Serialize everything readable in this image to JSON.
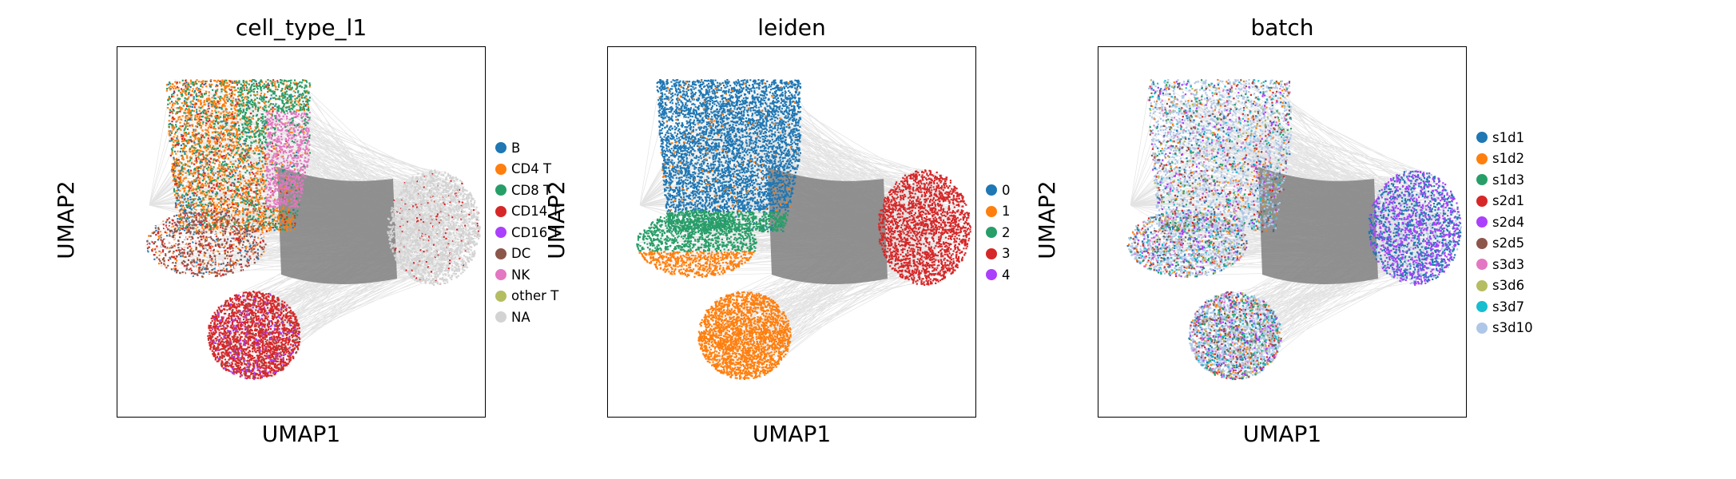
{
  "figure": {
    "panels": [
      {
        "id": "cell_type",
        "title": "cell_type_l1",
        "xlabel": "UMAP1",
        "ylabel": "UMAP2",
        "legend": [
          {
            "label": "B",
            "color": "#1f77b4"
          },
          {
            "label": "CD4 T",
            "color": "#ff7f0e"
          },
          {
            "label": "CD8 T",
            "color": "#279e68"
          },
          {
            "label": "CD14 T",
            "color": "#d62728"
          },
          {
            "label": "CD16 T",
            "color": "#aa40fc"
          },
          {
            "label": "DC",
            "color": "#8c564b"
          },
          {
            "label": "NK",
            "color": "#e377c2"
          },
          {
            "label": "other T",
            "color": "#b5bd61"
          },
          {
            "label": "NA",
            "color": "#d3d3d3"
          }
        ]
      },
      {
        "id": "leiden",
        "title": "leiden",
        "xlabel": "UMAP1",
        "ylabel": "UMAP2",
        "legend": [
          {
            "label": "0",
            "color": "#1f77b4"
          },
          {
            "label": "1",
            "color": "#ff7f0e"
          },
          {
            "label": "2",
            "color": "#279e68"
          },
          {
            "label": "3",
            "color": "#d62728"
          },
          {
            "label": "4",
            "color": "#aa40fc"
          }
        ]
      },
      {
        "id": "batch",
        "title": "batch",
        "xlabel": "UMAP1",
        "ylabel": "UMAP2",
        "legend": [
          {
            "label": "s1d1",
            "color": "#1f77b4"
          },
          {
            "label": "s1d2",
            "color": "#ff7f0e"
          },
          {
            "label": "s1d3",
            "color": "#279e68"
          },
          {
            "label": "s2d1",
            "color": "#d62728"
          },
          {
            "label": "s2d4",
            "color": "#aa40fc"
          },
          {
            "label": "s2d5",
            "color": "#8c564b"
          },
          {
            "label": "s3d3",
            "color": "#e377c2"
          },
          {
            "label": "s3d6",
            "color": "#b5bd61"
          },
          {
            "label": "s3d7",
            "color": "#17becf"
          },
          {
            "label": "s3d10",
            "color": "#aec7e8"
          }
        ]
      }
    ],
    "edge_color": "#808080"
  },
  "chart_data": [
    {
      "type": "scatter",
      "title": "cell_type_l1",
      "xlabel": "UMAP1",
      "ylabel": "UMAP2",
      "axis_ticks": "none",
      "legend_position": "right",
      "series": [
        {
          "name": "B",
          "color": "#1f77b4"
        },
        {
          "name": "CD4 T",
          "color": "#ff7f0e"
        },
        {
          "name": "CD8 T",
          "color": "#279e68"
        },
        {
          "name": "CD14 T",
          "color": "#d62728"
        },
        {
          "name": "CD16 T",
          "color": "#aa40fc"
        },
        {
          "name": "DC",
          "color": "#8c564b"
        },
        {
          "name": "NK",
          "color": "#e377c2"
        },
        {
          "name": "other T",
          "color": "#b5bd61"
        },
        {
          "name": "NA",
          "color": "#d3d3d3"
        }
      ]
    },
    {
      "type": "scatter",
      "title": "leiden",
      "xlabel": "UMAP1",
      "ylabel": "UMAP2",
      "axis_ticks": "none",
      "legend_position": "right",
      "series": [
        {
          "name": "0",
          "color": "#1f77b4"
        },
        {
          "name": "1",
          "color": "#ff7f0e"
        },
        {
          "name": "2",
          "color": "#279e68"
        },
        {
          "name": "3",
          "color": "#d62728"
        },
        {
          "name": "4",
          "color": "#aa40fc"
        }
      ]
    },
    {
      "type": "scatter",
      "title": "batch",
      "xlabel": "UMAP1",
      "ylabel": "UMAP2",
      "axis_ticks": "none",
      "legend_position": "right",
      "series": [
        {
          "name": "s1d1",
          "color": "#1f77b4"
        },
        {
          "name": "s1d2",
          "color": "#ff7f0e"
        },
        {
          "name": "s1d3",
          "color": "#279e68"
        },
        {
          "name": "s2d1",
          "color": "#d62728"
        },
        {
          "name": "s2d4",
          "color": "#aa40fc"
        },
        {
          "name": "s2d5",
          "color": "#8c564b"
        },
        {
          "name": "s3d3",
          "color": "#e377c2"
        },
        {
          "name": "s3d6",
          "color": "#b5bd61"
        },
        {
          "name": "s3d7",
          "color": "#17becf"
        },
        {
          "name": "s3d10",
          "color": "#aec7e8"
        }
      ]
    }
  ]
}
